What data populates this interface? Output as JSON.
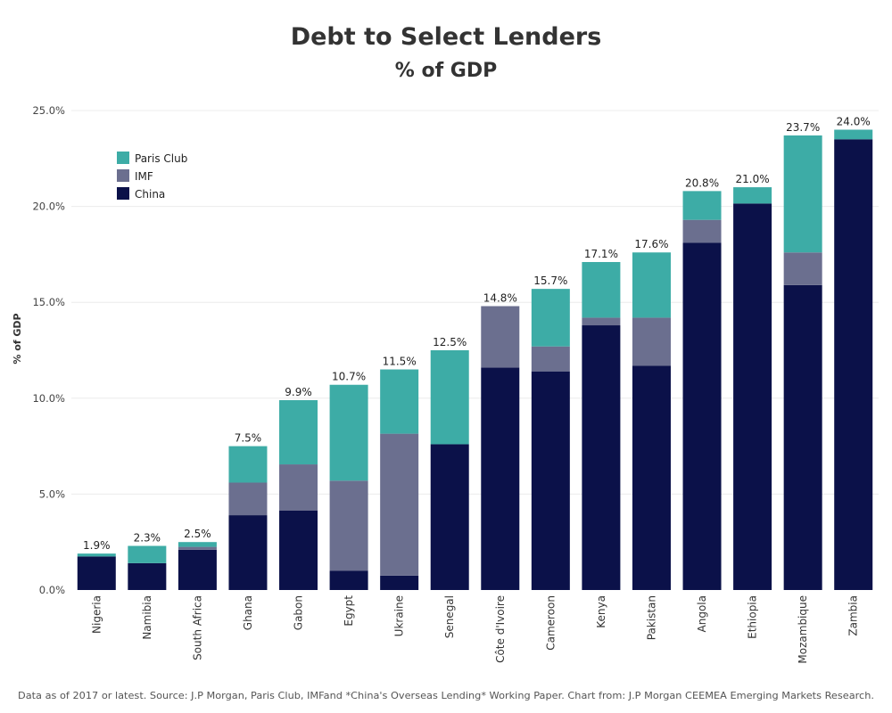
{
  "chart_data": {
    "type": "bar",
    "stacked": true,
    "title": "Debt to Select Lenders",
    "subtitle": "% of GDP",
    "xlabel": "",
    "ylabel": "% of GDP",
    "ylim": [
      0,
      25
    ],
    "yticks": [
      0,
      5,
      10,
      15,
      20,
      25
    ],
    "ytick_labels": [
      "0.0%",
      "5.0%",
      "10.0%",
      "15.0%",
      "20.0%",
      "25.0%"
    ],
    "grid": true,
    "legend_position": "top-left",
    "categories": [
      "Nigeria",
      "Namibia",
      "South Africa",
      "Ghana",
      "Gabon",
      "Egypt",
      "Ukraine",
      "Senegal",
      "Côte d'Ivoire",
      "Cameroon",
      "Kenya",
      "Pakistan",
      "Angola",
      "Ethiopia",
      "Mozambique",
      "Zambia"
    ],
    "series": [
      {
        "name": "China",
        "color": "#0b1149",
        "values": [
          1.75,
          1.4,
          2.1,
          3.9,
          4.15,
          1.0,
          0.75,
          7.6,
          11.6,
          11.4,
          13.8,
          11.7,
          18.1,
          20.15,
          15.9,
          23.5
        ]
      },
      {
        "name": "IMF",
        "color": "#6b6f8f",
        "values": [
          0.0,
          0.0,
          0.15,
          1.7,
          2.4,
          4.7,
          7.4,
          0.0,
          3.2,
          1.3,
          0.4,
          2.5,
          1.2,
          0.0,
          1.7,
          0.0
        ]
      },
      {
        "name": "Paris Club",
        "color": "#3daca6",
        "values": [
          0.15,
          0.9,
          0.25,
          1.9,
          3.35,
          5.0,
          3.35,
          4.9,
          0.0,
          3.0,
          2.9,
          3.4,
          1.5,
          0.85,
          6.1,
          0.5
        ]
      }
    ],
    "totals": [
      1.9,
      2.3,
      2.5,
      7.5,
      9.9,
      10.7,
      11.5,
      12.5,
      14.8,
      15.7,
      17.1,
      17.6,
      20.8,
      21.0,
      23.7,
      24.0
    ],
    "total_labels": [
      "1.9%",
      "2.3%",
      "2.5%",
      "7.5%",
      "9.9%",
      "10.7%",
      "11.5%",
      "12.5%",
      "14.8%",
      "15.7%",
      "17.1%",
      "17.6%",
      "20.8%",
      "21.0%",
      "23.7%",
      "24.0%"
    ],
    "legend": [
      {
        "name": "Paris Club",
        "color": "#3daca6"
      },
      {
        "name": "IMF",
        "color": "#6b6f8f"
      },
      {
        "name": "China",
        "color": "#0b1149"
      }
    ],
    "footnote": "Data as of 2017 or latest. Source: J.P Morgan, Paris Club, IMFand *China's Overseas Lending* Working Paper. Chart from: J.P Morgan CEEMEA Emerging Markets Research."
  }
}
